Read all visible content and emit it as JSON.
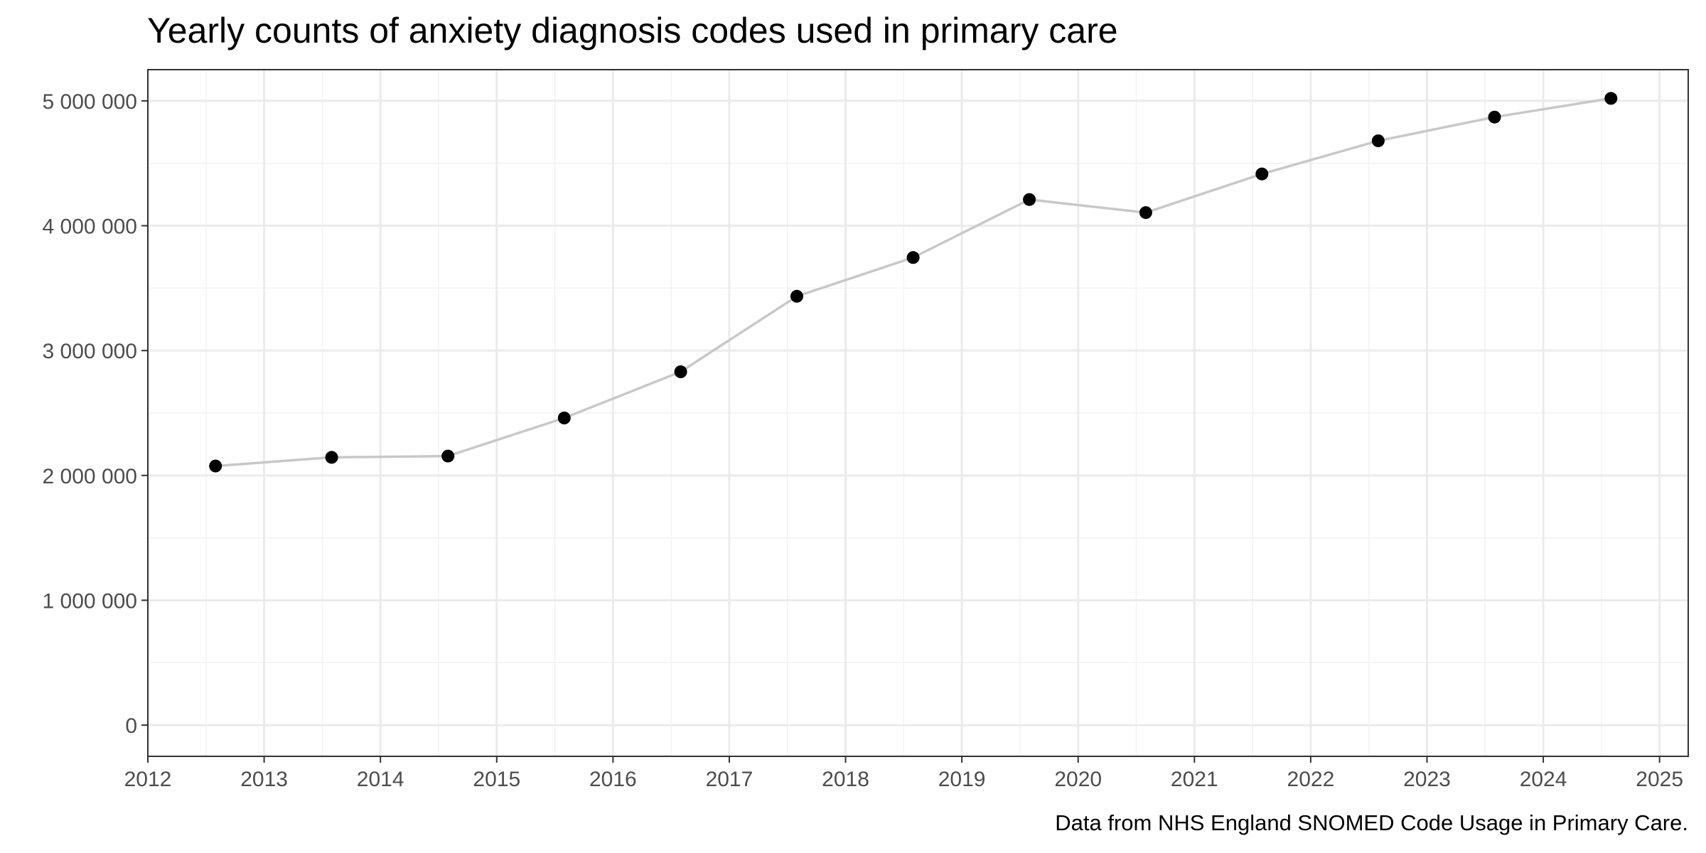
{
  "chart_data": {
    "type": "line",
    "title": "Yearly counts of anxiety diagnosis codes used in primary care",
    "caption": "Data from NHS England SNOMED Code Usage in Primary Care.",
    "xlabel": "",
    "ylabel": "",
    "x_tick_labels": [
      "2012",
      "2013",
      "2014",
      "2015",
      "2016",
      "2017",
      "2018",
      "2019",
      "2020",
      "2021",
      "2022",
      "2023",
      "2024",
      "2025"
    ],
    "y_tick_labels": [
      "0",
      "1 000 000",
      "2 000 000",
      "3 000 000",
      "4 000 000",
      "5 000 000"
    ],
    "xlim": [
      "2012-01-01",
      "2025-04-01"
    ],
    "ylim": [
      -250000,
      5250000
    ],
    "grid": true,
    "series": [
      {
        "points": [
          {
            "x": "2012-08-01",
            "y": 2075000
          },
          {
            "x": "2013-08-01",
            "y": 2145000
          },
          {
            "x": "2014-08-01",
            "y": 2155000
          },
          {
            "x": "2015-08-01",
            "y": 2460000
          },
          {
            "x": "2016-08-01",
            "y": 2830000
          },
          {
            "x": "2017-08-01",
            "y": 3435000
          },
          {
            "x": "2018-08-01",
            "y": 3745000
          },
          {
            "x": "2019-08-01",
            "y": 4210000
          },
          {
            "x": "2020-08-01",
            "y": 4105000
          },
          {
            "x": "2021-08-01",
            "y": 4415000
          },
          {
            "x": "2022-08-01",
            "y": 4680000
          },
          {
            "x": "2023-08-01",
            "y": 4870000
          },
          {
            "x": "2024-08-01",
            "y": 5020000
          }
        ]
      }
    ],
    "colors": {
      "line": "#c8c8c8",
      "points": "#000000",
      "grid_major": "#ebebeb",
      "grid_minor": "#f2f2f2",
      "panel_border": "#333333",
      "tick_text": "#4d4d4d"
    }
  }
}
